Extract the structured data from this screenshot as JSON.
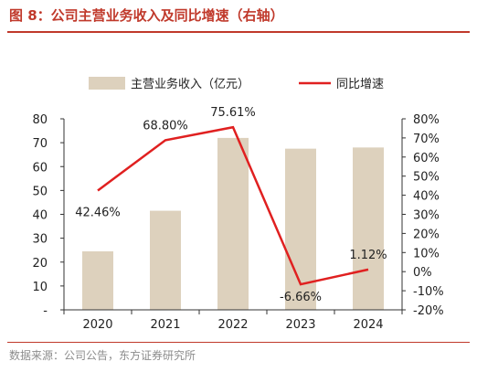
{
  "title": "图 8：公司主营业务收入及同比增速（右轴）",
  "source": "数据来源：公司公告，东方证券研究所",
  "colors": {
    "bar": "#ddd1bd",
    "line": "#e02020",
    "title": "#c0392b"
  },
  "chart_data": {
    "type": "bar",
    "categories": [
      "2020",
      "2021",
      "2022",
      "2023",
      "2024"
    ],
    "series": [
      {
        "name": "主营业务收入（亿元）",
        "type": "bar",
        "axis": "left",
        "values": [
          24.5,
          41.5,
          72,
          67.5,
          68
        ]
      },
      {
        "name": "同比增速",
        "type": "line",
        "axis": "right",
        "values": [
          42.46,
          68.8,
          75.61,
          -6.66,
          1.12
        ]
      }
    ],
    "data_labels": [
      "42.46%",
      "68.80%",
      "75.61%",
      "-6.66%",
      "1.12%"
    ],
    "left_axis": {
      "ylim": [
        0,
        80
      ],
      "ticks": [
        "-",
        "10",
        "20",
        "30",
        "40",
        "50",
        "60",
        "70",
        "80"
      ]
    },
    "right_axis": {
      "ylim": [
        -20,
        80
      ],
      "ticks": [
        "-20%",
        "-10%",
        "0%",
        "10%",
        "20%",
        "30%",
        "40%",
        "50%",
        "60%",
        "70%",
        "80%"
      ]
    },
    "legend_position": "top-center",
    "grid": false
  }
}
